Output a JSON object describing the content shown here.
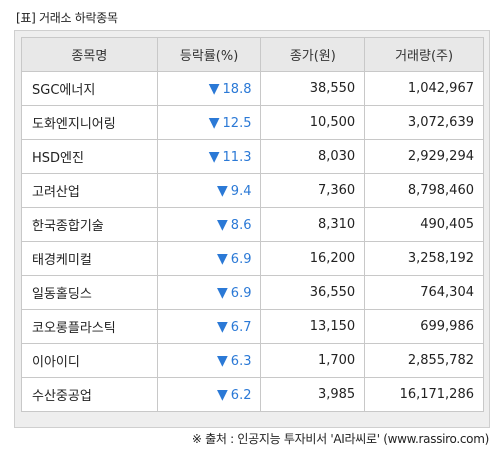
{
  "caption": "[표] 거래소 하락종목",
  "table": {
    "headers": [
      "종목명",
      "등락률(%)",
      "종가(원)",
      "거래량(주)"
    ],
    "rows": [
      {
        "name": "SGC에너지",
        "change": "18.8",
        "close": "38,550",
        "volume": "1,042,967"
      },
      {
        "name": "도화엔지니어링",
        "change": "12.5",
        "close": "10,500",
        "volume": "3,072,639"
      },
      {
        "name": "HSD엔진",
        "change": "11.3",
        "close": "8,030",
        "volume": "2,929,294"
      },
      {
        "name": "고려산업",
        "change": "9.4",
        "close": "7,360",
        "volume": "8,798,460"
      },
      {
        "name": "한국종합기술",
        "change": "8.6",
        "close": "8,310",
        "volume": "490,405"
      },
      {
        "name": "태경케미컬",
        "change": "6.9",
        "close": "16,200",
        "volume": "3,258,192"
      },
      {
        "name": "일동홀딩스",
        "change": "6.9",
        "close": "36,550",
        "volume": "764,304"
      },
      {
        "name": "코오롱플라스틱",
        "change": "6.7",
        "close": "13,150",
        "volume": "699,986"
      },
      {
        "name": "이아이디",
        "change": "6.3",
        "close": "1,700",
        "volume": "2,855,782"
      },
      {
        "name": "수산중공업",
        "change": "6.2",
        "close": "3,985",
        "volume": "16,171,286"
      }
    ]
  },
  "down_symbol": "▼",
  "down_icon": "down-triangle-icon",
  "down_color": "#2b79d6",
  "footer": "※ 출처 : 인공지능 투자비서 'AI라씨로' (www.rassiro.com)"
}
